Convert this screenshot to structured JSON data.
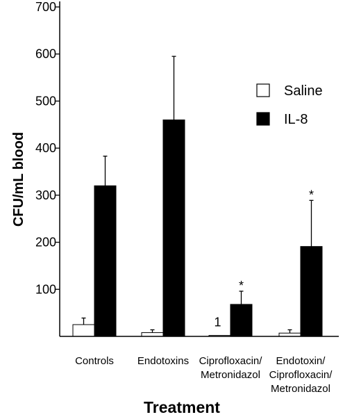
{
  "chart_data": {
    "type": "bar",
    "xlabel": "Treatment",
    "ylabel": "CFU/mL blood",
    "ylim": [
      0,
      700
    ],
    "yticks": [
      100,
      200,
      300,
      400,
      500,
      600,
      700
    ],
    "categories": [
      [
        "Controls"
      ],
      [
        "Endotoxins"
      ],
      [
        "Ciprofloxacin/",
        "Metronidazol"
      ],
      [
        "Endotoxin/",
        "Ciprofloxacin/",
        "Metronidazol"
      ]
    ],
    "series": [
      {
        "name": "Saline",
        "color": "#ffffff",
        "values": [
          25,
          8,
          2,
          7
        ],
        "errors": [
          14,
          6,
          0,
          7
        ]
      },
      {
        "name": "IL-8",
        "color": "#000000",
        "values": [
          320,
          460,
          68,
          191
        ],
        "errors": [
          63,
          135,
          28,
          98
        ]
      }
    ],
    "annotations": [
      {
        "category": 2,
        "series": 0,
        "text": "1"
      },
      {
        "category": 2,
        "series": 1,
        "text": "*"
      },
      {
        "category": 3,
        "series": 1,
        "text": "*"
      }
    ],
    "legend_position": "top-right"
  }
}
